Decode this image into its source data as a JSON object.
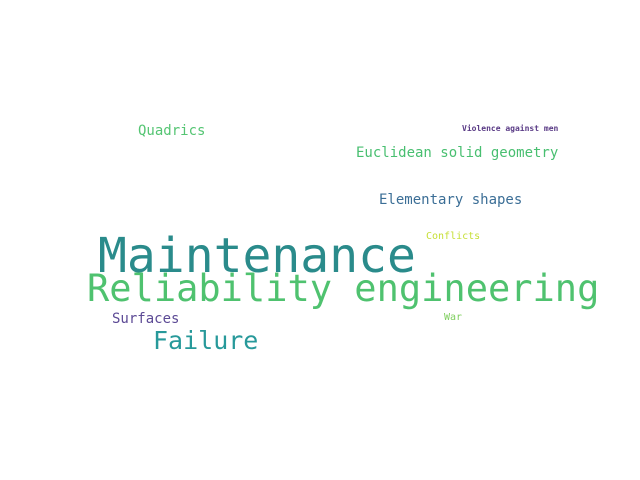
{
  "word_cloud": {
    "background": "#ffffff",
    "words": [
      {
        "id": "maintenance",
        "text": "Maintenance",
        "color": "#2a8b8b"
      },
      {
        "id": "reliability",
        "text": "Reliability engineering",
        "color": "#4fc26f"
      },
      {
        "id": "failure",
        "text": "Failure",
        "color": "#27999a"
      },
      {
        "id": "quadrics",
        "text": "Quadrics",
        "color": "#55c573"
      },
      {
        "id": "euclid",
        "text": "Euclidean solid geometry",
        "color": "#48bf70"
      },
      {
        "id": "elementary",
        "text": "Elementary shapes",
        "color": "#3b6e96"
      },
      {
        "id": "surfaces",
        "text": "Surfaces",
        "color": "#5c4a95"
      },
      {
        "id": "violence",
        "text": "Violence against men",
        "color": "#5a3b86"
      },
      {
        "id": "conflicts",
        "text": "Conflicts",
        "color": "#c6df35"
      },
      {
        "id": "war",
        "text": "War",
        "color": "#80cf60"
      }
    ]
  }
}
